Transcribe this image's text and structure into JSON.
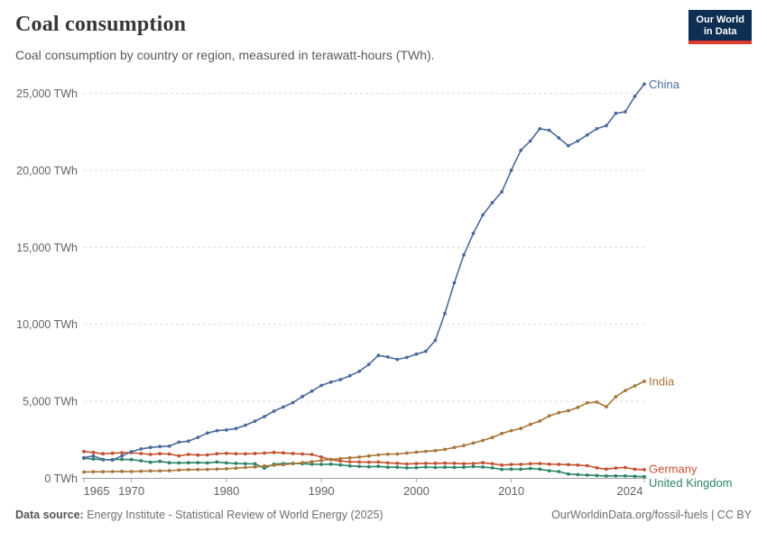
{
  "header": {
    "title": "Coal consumption",
    "subtitle": "Coal consumption by country or region, measured in terawatt-hours (TWh)."
  },
  "logo": {
    "line1": "Our World",
    "line2": "in Data",
    "bg_color": "#0e2e52",
    "bar_color": "#e0382c"
  },
  "footer": {
    "source_label": "Data source:",
    "source_text": " Energy Institute - Statistical Review of World Energy (2025)",
    "credit": "OurWorldinData.org/fossil-fuels | CC BY"
  },
  "chart_data": {
    "type": "line",
    "title": "Coal consumption",
    "xlabel": "",
    "ylabel": "TWh",
    "x_start": 1965,
    "x_end": 2024,
    "ylim": [
      0,
      25000
    ],
    "grid": "horizontal dashed",
    "legend_position": "line-end-labels",
    "y_ticks": [
      {
        "value": 0,
        "label": "0 TWh"
      },
      {
        "value": 5000,
        "label": "5,000 TWh"
      },
      {
        "value": 10000,
        "label": "10,000 TWh"
      },
      {
        "value": 15000,
        "label": "15,000 TWh"
      },
      {
        "value": 20000,
        "label": "20,000 TWh"
      },
      {
        "value": 25000,
        "label": "25,000 TWh"
      }
    ],
    "x_ticks": [
      {
        "year": 1965,
        "label": "1965",
        "dx": 14
      },
      {
        "year": 1970,
        "label": "1970",
        "dx": 0
      },
      {
        "year": 1980,
        "label": "1980",
        "dx": 0
      },
      {
        "year": 1990,
        "label": "1990",
        "dx": 0
      },
      {
        "year": 2000,
        "label": "2000",
        "dx": 0
      },
      {
        "year": 2010,
        "label": "2010",
        "dx": 0
      },
      {
        "year": 2024,
        "label": "2024",
        "dx": -16
      }
    ],
    "series": [
      {
        "name": "Germany",
        "color": "#C3512F",
        "label_dy": -1,
        "values": [
          1740,
          1680,
          1600,
          1630,
          1660,
          1670,
          1610,
          1550,
          1600,
          1580,
          1460,
          1550,
          1510,
          1520,
          1600,
          1620,
          1600,
          1590,
          1610,
          1640,
          1680,
          1650,
          1610,
          1580,
          1550,
          1380,
          1210,
          1130,
          1080,
          1060,
          1050,
          1060,
          1000,
          980,
          930,
          960,
          970,
          970,
          990,
          980,
          950,
          960,
          1010,
          950,
          860,
          900,
          910,
          950,
          960,
          920,
          910,
          890,
          860,
          820,
          680,
          600,
          670,
          700,
          590,
          560
        ]
      },
      {
        "name": "United Kingdom",
        "color": "#2C8465",
        "label_dy": 7,
        "values": [
          1300,
          1250,
          1200,
          1220,
          1230,
          1220,
          1140,
          1040,
          1100,
          1010,
          1000,
          1010,
          1020,
          1000,
          1060,
          1000,
          970,
          950,
          940,
          660,
          920,
          960,
          970,
          950,
          920,
          910,
          920,
          870,
          810,
          770,
          750,
          780,
          720,
          720,
          680,
          690,
          730,
          700,
          720,
          710,
          720,
          760,
          730,
          680,
          580,
          600,
          590,
          640,
          600,
          490,
          440,
          280,
          240,
          210,
          180,
          150,
          160,
          160,
          130,
          110
        ]
      },
      {
        "name": "India",
        "color": "#A8763B",
        "label_dy": 0,
        "values": [
          410,
          420,
          430,
          440,
          450,
          440,
          460,
          480,
          480,
          500,
          540,
          560,
          570,
          580,
          600,
          620,
          660,
          700,
          740,
          800,
          850,
          890,
          950,
          1010,
          1080,
          1160,
          1230,
          1280,
          1330,
          1380,
          1450,
          1520,
          1570,
          1580,
          1640,
          1700,
          1750,
          1800,
          1880,
          2000,
          2130,
          2290,
          2460,
          2650,
          2910,
          3100,
          3240,
          3500,
          3720,
          4050,
          4260,
          4390,
          4600,
          4900,
          4950,
          4650,
          5300,
          5700,
          6000,
          6300
        ]
      },
      {
        "name": "China",
        "color": "#4C6A9C",
        "label_dy": 0,
        "values": [
          1340,
          1450,
          1230,
          1190,
          1450,
          1730,
          1910,
          2010,
          2060,
          2090,
          2350,
          2410,
          2660,
          2940,
          3100,
          3140,
          3230,
          3450,
          3710,
          4010,
          4360,
          4630,
          4920,
          5310,
          5660,
          6030,
          6250,
          6410,
          6660,
          6950,
          7400,
          7980,
          7880,
          7720,
          7850,
          8060,
          8250,
          8960,
          10700,
          12700,
          14500,
          15900,
          17100,
          17900,
          18600,
          20000,
          21300,
          21900,
          22700,
          22600,
          22100,
          21600,
          21900,
          22300,
          22700,
          22900,
          23700,
          23800,
          24800,
          25600
        ]
      }
    ]
  }
}
